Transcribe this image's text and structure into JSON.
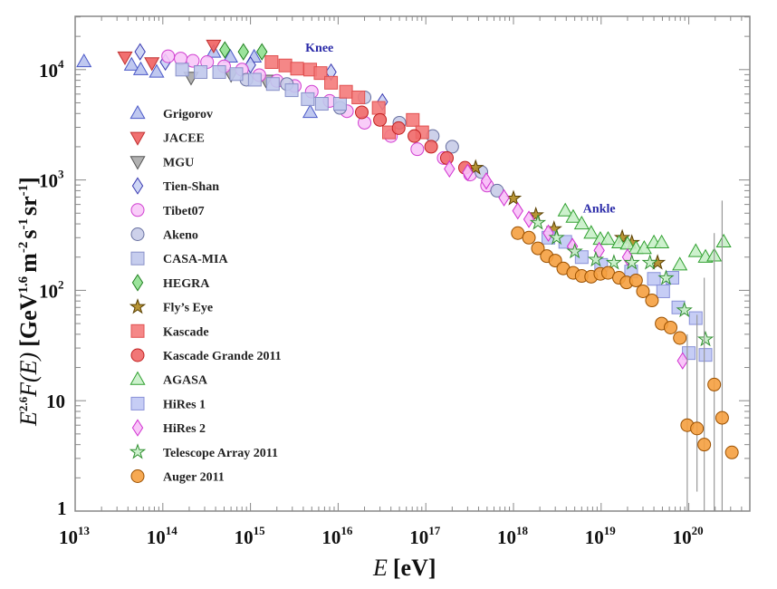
{
  "chart_data": {
    "type": "scatter",
    "title": "",
    "xlabel": "E [eV]",
    "ylabel": "E^2.6 F(E) [GeV^1.6 m^-2 s^-1 sr^-1]",
    "xlabel_parts": {
      "var": "E",
      "unit": "[eV]"
    },
    "ylabel_parts": {
      "base": "E",
      "exp": "2.6",
      "func": "F(E)",
      "unit_open": "[GeV",
      "unit_exp1": "1.6",
      "m": "m",
      "m_exp": "-2",
      "s": "s",
      "s_exp": "-1",
      "sr": "sr",
      "sr_exp": "-1",
      "close": "]"
    },
    "xscale": "log",
    "yscale": "log",
    "xlim": [
      10000000000000.0,
      5e+20
    ],
    "ylim": [
      1,
      30000
    ],
    "x_ticks": [
      {
        "base": "10",
        "exp": "13"
      },
      {
        "base": "10",
        "exp": "14"
      },
      {
        "base": "10",
        "exp": "15"
      },
      {
        "base": "10",
        "exp": "16"
      },
      {
        "base": "10",
        "exp": "17"
      },
      {
        "base": "10",
        "exp": "18"
      },
      {
        "base": "10",
        "exp": "19"
      },
      {
        "base": "10",
        "exp": "20"
      }
    ],
    "y_ticks": [
      {
        "base": "1",
        "exp": ""
      },
      {
        "base": "10",
        "exp": ""
      },
      {
        "base": "10",
        "exp": "2"
      },
      {
        "base": "10",
        "exp": "3"
      },
      {
        "base": "10",
        "exp": "4"
      }
    ],
    "grid": false,
    "legend_position": "left",
    "annotations": [
      {
        "text": "Knee",
        "x": 6800000000000000.0,
        "y": 16000
      },
      {
        "text": "Ankle",
        "x": 1e+19,
        "y": 560
      }
    ],
    "series": [
      {
        "name": "Grigorov",
        "marker": "triangle-up",
        "fill": "#b8c2ee",
        "stroke": "#4a58c8",
        "points": [
          [
            12600000000000.0,
            11800
          ],
          [
            44000000000000.0,
            11000
          ],
          [
            56000000000000.0,
            10000
          ],
          [
            85000000000000.0,
            9500
          ],
          [
            380000000000000.0,
            14400
          ],
          [
            590000000000000.0,
            13000
          ],
          [
            1100000000000000.0,
            13000
          ],
          [
            4800000000000000.0,
            4100
          ]
        ]
      },
      {
        "name": "JACEE",
        "marker": "triangle-down",
        "fill": "#f06060",
        "stroke": "#c03030",
        "points": [
          [
            37000000000000.0,
            13000
          ],
          [
            75000000000000.0,
            11500
          ],
          [
            380000000000000.0,
            16600
          ]
        ]
      },
      {
        "name": "MGU",
        "marker": "triangle-down",
        "fill": "#a8a8a8",
        "stroke": "#555555",
        "points": [
          [
            210000000000000.0,
            8500
          ],
          [
            600000000000000.0,
            9000
          ],
          [
            1500000000000000.0,
            8000
          ]
        ]
      },
      {
        "name": "Tien-Shan",
        "marker": "diamond",
        "fill": "#c8d0f4",
        "stroke": "#3838b0",
        "points": [
          [
            55000000000000.0,
            14500
          ],
          [
            107000000000000.0,
            11700
          ],
          [
            1000000000000000.0,
            11000
          ],
          [
            8300000000000000.0,
            9500
          ],
          [
            3.2e+16,
            5100
          ]
        ]
      },
      {
        "name": "Tibet07",
        "marker": "circle",
        "fill": "#f8c8f8",
        "stroke": "#d040d0",
        "points": [
          [
            115000000000000.0,
            13200
          ],
          [
            160000000000000.0,
            12600
          ],
          [
            220000000000000.0,
            12000
          ],
          [
            320000000000000.0,
            11700
          ],
          [
            500000000000000.0,
            10700
          ],
          [
            800000000000000.0,
            10000
          ],
          [
            1260000000000000.0,
            8900
          ],
          [
            2000000000000000.0,
            7900
          ],
          [
            3200000000000000.0,
            7100
          ],
          [
            5000000000000000.0,
            6300
          ],
          [
            8000000000000000.0,
            5200
          ],
          [
            1.26e+16,
            4200
          ],
          [
            2e+16,
            3300
          ],
          [
            4e+16,
            2500
          ],
          [
            8e+16,
            1900
          ],
          [
            1.6e+17,
            1580
          ],
          [
            3.2e+17,
            1120
          ],
          [
            5e+17,
            890
          ]
        ]
      },
      {
        "name": "Akeno",
        "marker": "circle",
        "fill": "#c8cce8",
        "stroke": "#6870a0",
        "points": [
          [
            900000000000000.0,
            8100
          ],
          [
            2600000000000000.0,
            7400
          ],
          [
            1.05e+16,
            4500
          ],
          [
            2e+16,
            5600
          ],
          [
            5e+16,
            3300
          ],
          [
            1.2e+17,
            2500
          ],
          [
            2e+17,
            2000
          ],
          [
            4.3e+17,
            1180
          ],
          [
            6.5e+17,
            800
          ]
        ]
      },
      {
        "name": "CASA-MIA",
        "marker": "square",
        "fill": "#c0c8ec",
        "stroke": "#8890c8",
        "points": [
          [
            166000000000000.0,
            10000
          ],
          [
            270000000000000.0,
            9500
          ],
          [
            440000000000000.0,
            9500
          ],
          [
            690000000000000.0,
            9100
          ],
          [
            1120000000000000.0,
            8100
          ],
          [
            1800000000000000.0,
            7400
          ],
          [
            2950000000000000.0,
            6500
          ],
          [
            4500000000000000.0,
            5400
          ],
          [
            6500000000000000.0,
            4900
          ],
          [
            1.05e+16,
            4900
          ]
        ]
      },
      {
        "name": "HEGRA",
        "marker": "diamond",
        "fill": "#90e090",
        "stroke": "#208020",
        "points": [
          [
            510000000000000.0,
            15100
          ],
          [
            830000000000000.0,
            14500
          ],
          [
            1350000000000000.0,
            14500
          ]
        ]
      },
      {
        "name": "Fly’s Eye",
        "marker": "star",
        "fill": "#b08a20",
        "stroke": "#5a4000",
        "points": [
          [
            3.7e+17,
            1290
          ],
          [
            1e+18,
            680
          ],
          [
            1.8e+18,
            480
          ],
          [
            2.9e+18,
            360
          ],
          [
            1.74e+19,
            300
          ],
          [
            2.24e+19,
            270
          ],
          [
            4.4e+19,
            178
          ]
        ]
      },
      {
        "name": "Kascade",
        "marker": "square",
        "fill": "#f47a7a",
        "stroke": "#e05050",
        "points": [
          [
            1740000000000000.0,
            11700
          ],
          [
            2500000000000000.0,
            10900
          ],
          [
            3400000000000000.0,
            10200
          ],
          [
            4800000000000000.0,
            10000
          ],
          [
            6300000000000000.0,
            9300
          ],
          [
            8300000000000000.0,
            7600
          ],
          [
            1.23e+16,
            6300
          ],
          [
            1.7e+16,
            5600
          ],
          [
            2.9e+16,
            4500
          ],
          [
            3.8e+16,
            2700
          ],
          [
            7.1e+16,
            3500
          ],
          [
            9.1e+16,
            2700
          ]
        ]
      },
      {
        "name": "Kascade Grande 2011",
        "marker": "circle",
        "fill": "#f06868",
        "stroke": "#c02020",
        "points": [
          [
            1.86e+16,
            4100
          ],
          [
            3e+16,
            3500
          ],
          [
            4.9e+16,
            2950
          ],
          [
            7.4e+16,
            2500
          ],
          [
            1.15e+17,
            2000
          ],
          [
            1.74e+17,
            1580
          ],
          [
            2.8e+17,
            1290
          ]
        ]
      },
      {
        "name": "AGASA",
        "marker": "triangle-up",
        "fill": "#c8f0c8",
        "stroke": "#30a030",
        "points": [
          [
            3.9e+18,
            525
          ],
          [
            4.8e+18,
            460
          ],
          [
            6e+18,
            400
          ],
          [
            7.7e+18,
            330
          ],
          [
            9.8e+18,
            290
          ],
          [
            1.2e+19,
            290
          ],
          [
            1.6e+19,
            270
          ],
          [
            2e+19,
            263
          ],
          [
            2.5e+19,
            240
          ],
          [
            3.1e+19,
            240
          ],
          [
            4e+19,
            270
          ],
          [
            4.9e+19,
            270
          ],
          [
            7.9e+19,
            170
          ],
          [
            1.2e+20,
            225
          ],
          [
            1.55e+20,
            200
          ],
          [
            1.95e+20,
            205
          ],
          [
            2.5e+20,
            275
          ]
        ]
      },
      {
        "name": "HiRes 1",
        "marker": "square",
        "fill": "#c0c8f4",
        "stroke": "#8890d8",
        "points": [
          [
            2.5e+18,
            300
          ],
          [
            3.9e+18,
            275
          ],
          [
            6e+18,
            200
          ],
          [
            1e+19,
            170
          ],
          [
            2.2e+19,
            148
          ],
          [
            4e+19,
            127
          ],
          [
            5.1e+19,
            98
          ],
          [
            6.5e+19,
            130
          ],
          [
            7.6e+19,
            70
          ],
          [
            1e+20,
            27
          ],
          [
            1.2e+20,
            56
          ],
          [
            1.55e+20,
            26
          ]
        ]
      },
      {
        "name": "HiRes 2",
        "marker": "diamond",
        "fill": "#f8c0f8",
        "stroke": "#d030d0",
        "points": [
          [
            1.86e+17,
            1260
          ],
          [
            3e+17,
            1170
          ],
          [
            4.9e+17,
            980
          ],
          [
            7.8e+17,
            690
          ],
          [
            1.12e+18,
            525
          ],
          [
            1.5e+18,
            440
          ],
          [
            2.5e+18,
            330
          ],
          [
            4.7e+18,
            250
          ],
          [
            9.5e+18,
            230
          ],
          [
            2e+19,
            200
          ],
          [
            8.5e+19,
            23
          ]
        ]
      },
      {
        "name": "Telescope Array 2011",
        "marker": "star",
        "fill": "#c8f0c8",
        "stroke": "#309030",
        "points": [
          [
            1.9e+18,
            410
          ],
          [
            3.1e+18,
            300
          ],
          [
            5e+18,
            225
          ],
          [
            8.7e+18,
            190
          ],
          [
            1.4e+19,
            178
          ],
          [
            2.24e+19,
            178
          ],
          [
            3.6e+19,
            178
          ],
          [
            5.5e+19,
            129
          ],
          [
            8.9e+19,
            66
          ],
          [
            1.55e+20,
            36
          ]
        ]
      },
      {
        "name": "Auger 2011",
        "marker": "circle",
        "fill": "#f5a040",
        "stroke": "#9a5000",
        "points": [
          [
            1.12e+18,
            330
          ],
          [
            1.5e+18,
            300
          ],
          [
            1.9e+18,
            240
          ],
          [
            2.4e+18,
            204
          ],
          [
            3e+18,
            186
          ],
          [
            3.7e+18,
            158
          ],
          [
            4.8e+18,
            144
          ],
          [
            6e+18,
            135
          ],
          [
            7.7e+18,
            133
          ],
          [
            9.8e+18,
            141
          ],
          [
            1.2e+19,
            144
          ],
          [
            1.6e+19,
            130
          ],
          [
            1.95e+19,
            118
          ],
          [
            2.5e+19,
            123
          ],
          [
            3e+19,
            98
          ],
          [
            3.8e+19,
            81
          ],
          [
            4.9e+19,
            50
          ],
          [
            6.2e+19,
            46
          ],
          [
            7.9e+19,
            37
          ],
          [
            9.6e+19,
            6
          ],
          [
            1.24e+20,
            5.6
          ],
          [
            1.5e+20,
            4.0
          ],
          [
            1.95e+20,
            14
          ],
          [
            2.4e+20,
            7
          ],
          [
            3.1e+20,
            3.4
          ]
        ],
        "error_bars": [
          [
            9.6e+19,
            1,
            40
          ],
          [
            1.24e+20,
            1.5,
            60
          ],
          [
            1.5e+20,
            1,
            130
          ],
          [
            1.95e+20,
            1,
            330
          ],
          [
            2.4e+20,
            1,
            650
          ]
        ]
      }
    ]
  }
}
